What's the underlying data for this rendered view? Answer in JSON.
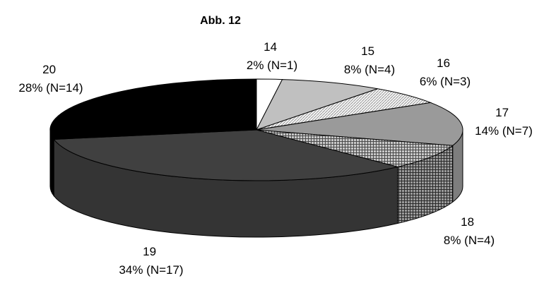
{
  "chart_data": {
    "type": "pie",
    "title": "Abb. 12",
    "three_d": true,
    "start_angle_deg": -90,
    "direction": "clockwise",
    "slices": [
      {
        "name": "14",
        "label": "2% (N=1)",
        "value": 1,
        "color": "#ffffff",
        "pattern": ""
      },
      {
        "name": "15",
        "label": "8% (N=4)",
        "value": 4,
        "color": "#c0c0c0",
        "pattern": ""
      },
      {
        "name": "16",
        "label": "6% (N=3)",
        "value": 3,
        "color": "#f2f2f2",
        "pattern": "diagonal"
      },
      {
        "name": "17",
        "label": "14% (N=7)",
        "value": 7,
        "color": "#9a9a9a",
        "pattern": ""
      },
      {
        "name": "18",
        "label": "8% (N=4)",
        "value": 4,
        "color": "#6e6e6e",
        "pattern": "grid"
      },
      {
        "name": "19",
        "label": "34% (N=17)",
        "value": 17,
        "color": "#404040",
        "pattern": ""
      },
      {
        "name": "20",
        "label": "28% (N=14)",
        "value": 14,
        "color": "#000000",
        "pattern": ""
      }
    ]
  }
}
